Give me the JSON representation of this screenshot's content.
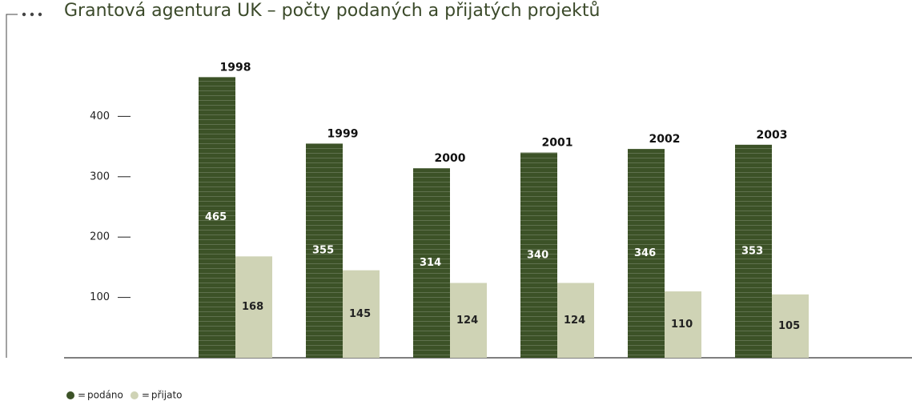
{
  "chart_data": {
    "type": "bar",
    "title": "Grantová agentura UK – počty podaných a přijatých projektů",
    "categories": [
      "1998",
      "1999",
      "2000",
      "2001",
      "2002",
      "2003"
    ],
    "series": [
      {
        "name": "podáno",
        "color": "#3c5227",
        "values": [
          465,
          355,
          314,
          340,
          346,
          353
        ]
      },
      {
        "name": "přijato",
        "color": "#cfd3b5",
        "values": [
          168,
          145,
          124,
          124,
          110,
          105
        ]
      }
    ],
    "ylim": [
      0,
      500
    ],
    "yticks": [
      100,
      200,
      300,
      400
    ],
    "grid": false
  }
}
